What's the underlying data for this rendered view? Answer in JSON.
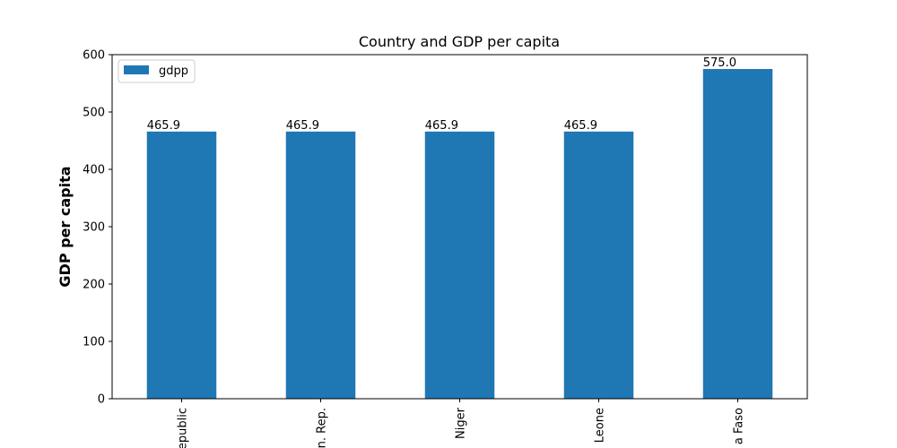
{
  "chart_data": {
    "type": "bar",
    "title": "Country and GDP per capita",
    "xlabel": "",
    "ylabel": "GDP per capita",
    "categories": [
      "epublic",
      "n. Rep.",
      "Niger",
      "Leone",
      "a Faso"
    ],
    "series": [
      {
        "name": "gdpp",
        "values": [
          465.9,
          465.9,
          465.9,
          465.9,
          575.0
        ]
      }
    ],
    "data_labels": [
      "465.9",
      "465.9",
      "465.9",
      "465.9",
      "575.0"
    ],
    "ylim": [
      0,
      600
    ],
    "yticks": [
      "0",
      "100",
      "200",
      "300",
      "400",
      "500",
      "600"
    ],
    "grid": false,
    "legend_position": "top-left",
    "bar_color": "#1f77b4"
  }
}
